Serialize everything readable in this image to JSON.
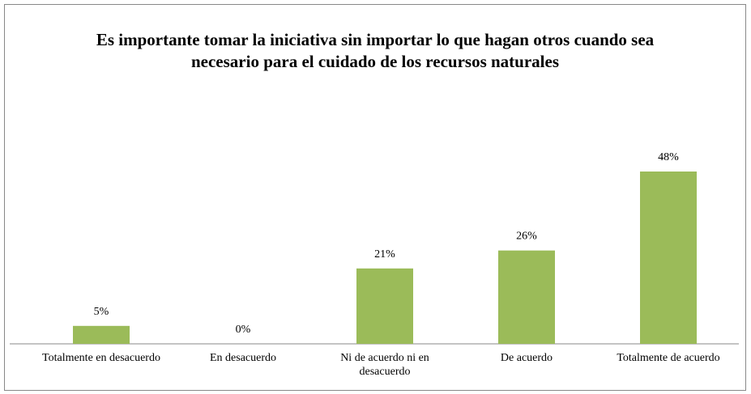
{
  "chart_data": {
    "type": "bar",
    "title": "Es importante tomar la iniciativa sin importar lo que hagan otros cuando sea necesario para el cuidado de los recursos naturales",
    "categories": [
      "Totalmente en desacuerdo",
      "En desacuerdo",
      "Ni de acuerdo ni en desacuerdo",
      "De acuerdo",
      "Totalmente de acuerdo"
    ],
    "values": [
      5,
      0,
      21,
      26,
      48
    ],
    "value_labels": [
      "5%",
      "0%",
      "21%",
      "26%",
      "48%"
    ],
    "color": "#9bbb59"
  }
}
